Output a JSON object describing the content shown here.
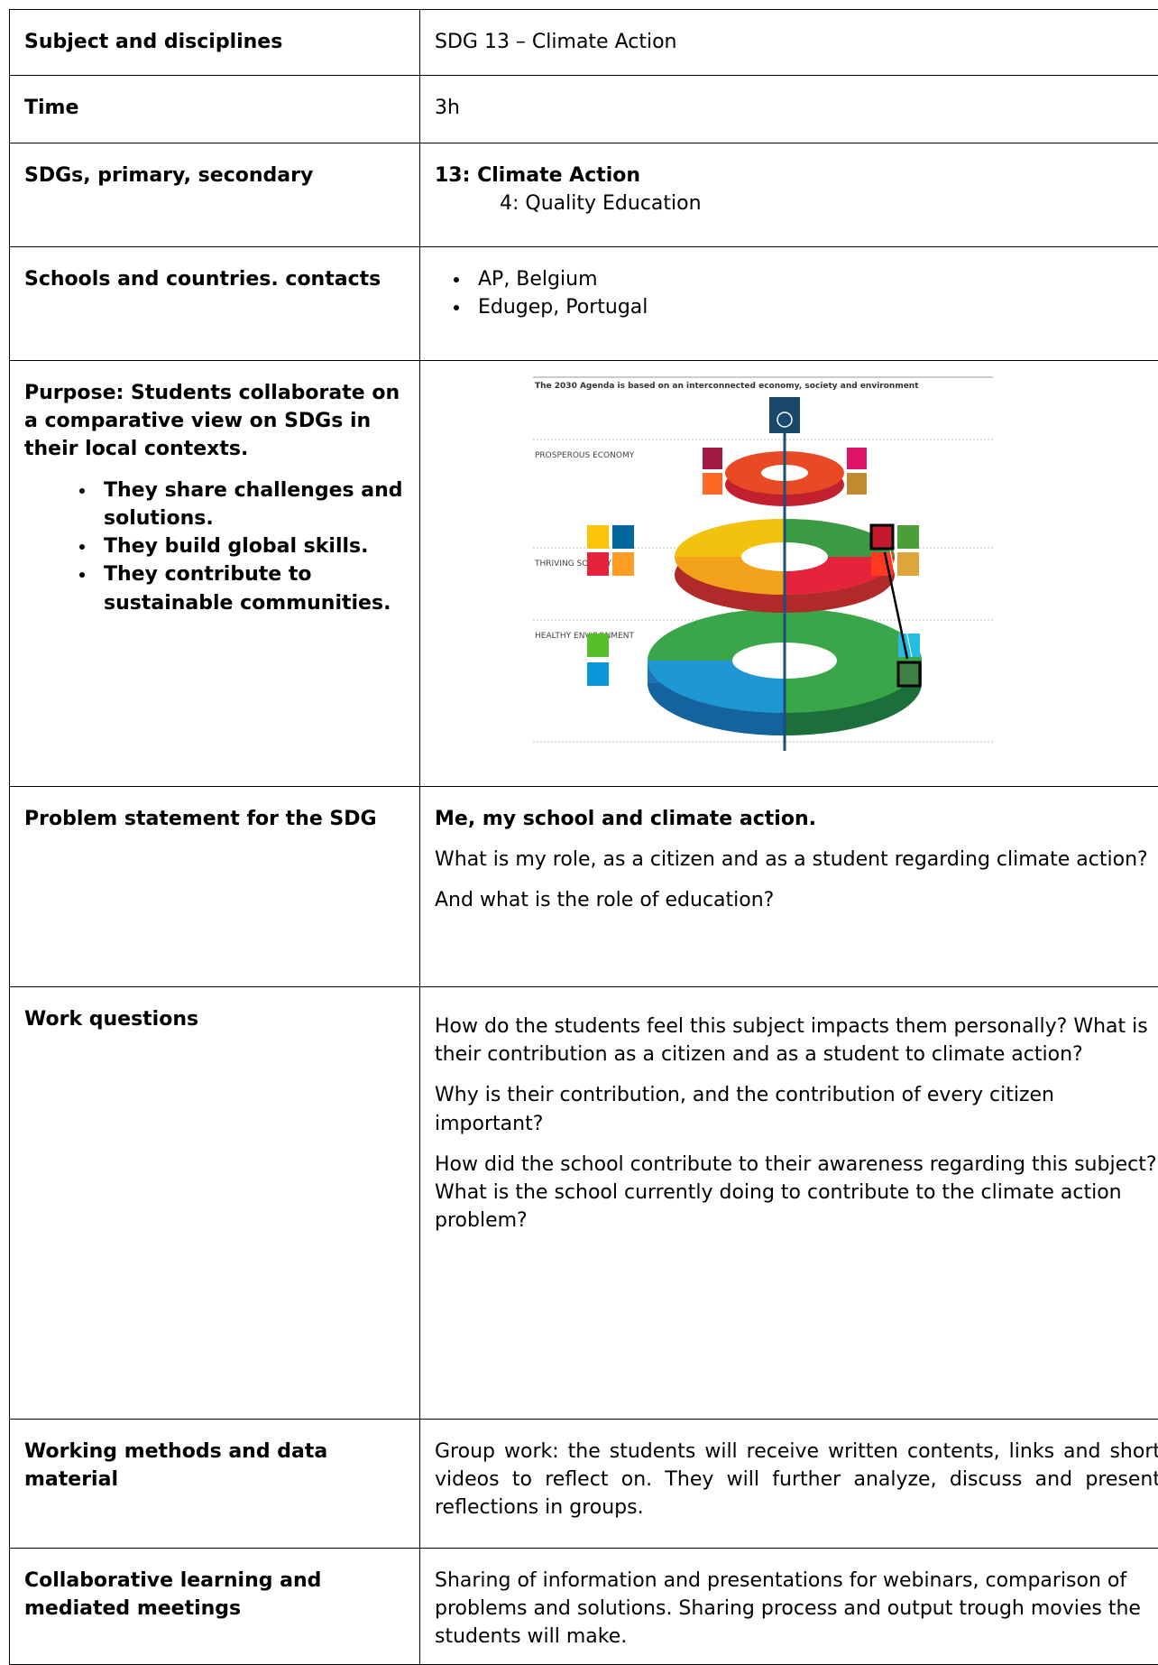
{
  "table": {
    "rows": [
      {
        "label": "Subject and disciplines",
        "text": "SDG 13 – Climate Action"
      },
      {
        "label": "Time",
        "text": "3h"
      },
      {
        "label": "SDGs, primary, secondary",
        "primary": "13: Climate Action",
        "secondary": "4: Quality Education"
      },
      {
        "label": "Schools and countries. contacts",
        "items": [
          "AP, Belgium",
          "Edugep, Portugal"
        ]
      },
      {
        "label": "Purpose: Students collaborate on a comparative view on SDGs in their local contexts.",
        "items": [
          "They share challenges and solutions.",
          "They build global skills.",
          "They contribute to sustainable communities."
        ],
        "figure": {
          "title": "The 2030 Agenda is based on an interconnected economy, society and environment",
          "levels": [
            "PROSPEROUS ECONOMY",
            "THRIVING SOCIETY",
            "HEALTHY ENVIRONMENT"
          ]
        }
      },
      {
        "label": "Problem statement for the SDG",
        "heading": "Me, my school and climate action.",
        "paragraphs": [
          "What is my role, as a citizen and as a student regarding climate action?",
          "And what is the role of education?"
        ]
      },
      {
        "label": "Work questions",
        "paragraphs": [
          "How do the students feel this subject impacts them personally? What is their contribution as a citizen and as a student to climate action?",
          "Why is their contribution, and the contribution of every citizen important?",
          "How did the school contribute to their awareness regarding this subject? What is the school currently doing to contribute to the climate action problem?"
        ]
      },
      {
        "label": "Working methods and data material",
        "paragraphs": [
          "Group work: the students will receive written contents, links and short videos to reflect on. They will further analyze, discuss and present reflections in groups."
        ]
      },
      {
        "label": "Collaborative learning and mediated meetings",
        "paragraphs": [
          "Sharing of information and presentations for webinars, comparison of problems and solutions. Sharing process and output trough movies the students will make."
        ]
      }
    ]
  }
}
